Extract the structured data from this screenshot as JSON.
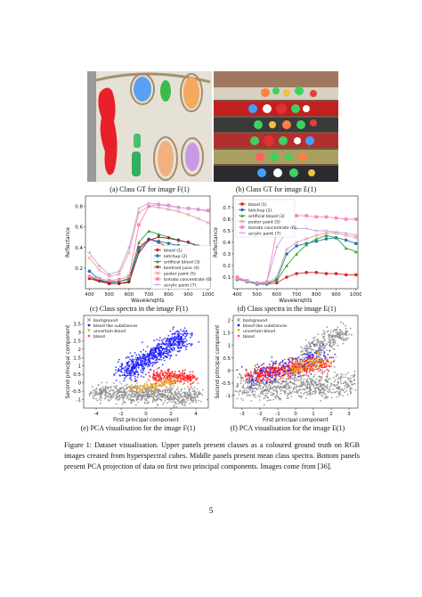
{
  "captions": {
    "a": "(a) Class GT for image F(1)",
    "b": "(b) Class GT for image E(1)",
    "c": "(c) Class spectra in the image F(1)",
    "d": "(d) Class spectra in the image E(1)",
    "e": "(e) PCA visualisation for the image F(1)",
    "f": "(f) PCA visualisation for the image E(1)"
  },
  "figure_caption": "Figure 1: Dataset visualisation. Upper panels present classes as a coloured ground truth on RGB images created from hyperspectral cubes. Middle panels present mean class spectra. Bottom panels present PCA projection of data on first two principal components. Images come from [36].",
  "page_number": "5",
  "colors": {
    "blood": "#d62728",
    "ketchup": "#1f77b4",
    "artificial": "#2ca02c",
    "beetroot": "#8b1a2b",
    "poster": "#e8a0a0",
    "tomato": "#ff7fbf",
    "acrylic": "#c9a0dc",
    "bg_gray": "#8a8a8a",
    "blue_pca": "#1a1aff",
    "orange_pca": "#e8a020",
    "red_pca": "#ff1a1a"
  },
  "chart_data": [
    {
      "id": "c",
      "type": "line",
      "xlabel": "Wavelenghts",
      "ylabel": "Reflectance",
      "xlim": [
        380,
        1010
      ],
      "ylim": [
        0.0,
        0.9
      ],
      "xticks": [
        400,
        500,
        600,
        700,
        800,
        900,
        1000
      ],
      "yticks": [
        0.2,
        0.4,
        0.6,
        0.8
      ],
      "legend": "bottom-right",
      "x": [
        400,
        450,
        500,
        550,
        600,
        650,
        700,
        750,
        800,
        850,
        900,
        950,
        1000
      ],
      "series": [
        {
          "name": "blood (1)",
          "key": "blood",
          "marker": "o",
          "values": [
            0.1,
            0.08,
            0.05,
            0.05,
            0.07,
            0.4,
            0.48,
            0.45,
            0.4,
            0.38,
            0.36,
            0.33,
            0.32
          ]
        },
        {
          "name": "ketchup (2)",
          "key": "ketchup",
          "marker": "o",
          "values": [
            0.17,
            0.09,
            0.06,
            0.07,
            0.1,
            0.38,
            0.48,
            0.46,
            0.44,
            0.42,
            0.4,
            0.36,
            0.35
          ]
        },
        {
          "name": "artificial blood (3)",
          "key": "artificial",
          "marker": "^",
          "values": [
            0.12,
            0.08,
            0.07,
            0.07,
            0.09,
            0.45,
            0.56,
            0.53,
            0.5,
            0.47,
            0.45,
            0.42,
            0.4
          ]
        },
        {
          "name": "beetroot juice (4)",
          "key": "beetroot",
          "marker": "v",
          "values": [
            0.1,
            0.07,
            0.05,
            0.05,
            0.06,
            0.35,
            0.47,
            0.5,
            0.49,
            0.47,
            0.45,
            0.41,
            0.38
          ]
        },
        {
          "name": "poster paint (5)",
          "key": "poster",
          "marker": "x",
          "values": [
            0.3,
            0.18,
            0.12,
            0.14,
            0.35,
            0.74,
            0.8,
            0.79,
            0.77,
            0.75,
            0.72,
            0.68,
            0.64
          ]
        },
        {
          "name": "tomato concentrate (6)",
          "key": "tomato",
          "marker": "s",
          "values": [
            0.12,
            0.1,
            0.08,
            0.09,
            0.12,
            0.62,
            0.8,
            0.82,
            0.81,
            0.79,
            0.78,
            0.77,
            0.76
          ]
        },
        {
          "name": "acrylic paint (7)",
          "key": "acrylic",
          "marker": "+",
          "values": [
            0.35,
            0.22,
            0.14,
            0.17,
            0.4,
            0.78,
            0.83,
            0.82,
            0.8,
            0.79,
            0.78,
            0.77,
            0.75
          ]
        }
      ]
    },
    {
      "id": "d",
      "type": "line",
      "xlabel": "Wavelenghts",
      "ylabel": "Reflectance",
      "xlim": [
        380,
        1010
      ],
      "ylim": [
        0.0,
        0.8
      ],
      "xticks": [
        400,
        500,
        600,
        700,
        800,
        900,
        1000
      ],
      "yticks": [
        0.1,
        0.2,
        0.3,
        0.4,
        0.5,
        0.6,
        0.7
      ],
      "legend": "top-left",
      "x": [
        400,
        450,
        500,
        550,
        600,
        650,
        700,
        750,
        800,
        850,
        900,
        950,
        1000
      ],
      "series": [
        {
          "name": "blood (1)",
          "key": "blood",
          "marker": "o",
          "values": [
            0.08,
            0.06,
            0.04,
            0.04,
            0.05,
            0.1,
            0.13,
            0.14,
            0.14,
            0.13,
            0.13,
            0.12,
            0.12
          ]
        },
        {
          "name": "ketchup (2)",
          "key": "ketchup",
          "marker": "o",
          "values": [
            0.09,
            0.06,
            0.04,
            0.04,
            0.08,
            0.3,
            0.37,
            0.39,
            0.41,
            0.43,
            0.44,
            0.42,
            0.39
          ]
        },
        {
          "name": "artificial blood (3)",
          "key": "artificial",
          "marker": "^",
          "values": [
            0.08,
            0.06,
            0.05,
            0.05,
            0.07,
            0.2,
            0.3,
            0.38,
            0.43,
            0.46,
            0.44,
            0.35,
            0.32
          ]
        },
        {
          "name": "poster paint (5)",
          "key": "poster",
          "marker": "x",
          "values": [
            0.09,
            0.07,
            0.05,
            0.05,
            0.1,
            0.34,
            0.4,
            0.43,
            0.46,
            0.48,
            0.48,
            0.46,
            0.44
          ]
        },
        {
          "name": "tomato concentrate (6)",
          "key": "tomato",
          "marker": "s",
          "values": [
            0.1,
            0.07,
            0.05,
            0.06,
            0.5,
            0.6,
            0.63,
            0.63,
            0.62,
            0.62,
            0.61,
            0.6,
            0.6
          ]
        },
        {
          "name": "acrylic paint (7)",
          "key": "acrylic",
          "marker": "+",
          "values": [
            0.08,
            0.06,
            0.05,
            0.06,
            0.36,
            0.5,
            0.52,
            0.52,
            0.5,
            0.5,
            0.49,
            0.48,
            0.46
          ]
        }
      ]
    },
    {
      "id": "e",
      "type": "scatter",
      "xlabel": "First principal component",
      "ylabel": "Second principal component",
      "xlim": [
        -5,
        5
      ],
      "ylim": [
        -1.5,
        4
      ],
      "xticks": [
        -4,
        -2,
        0,
        2,
        4
      ],
      "yticks": [
        -1,
        -0.5,
        0,
        0.5,
        1,
        1.5,
        2,
        2.5,
        3,
        3.5
      ],
      "legend": "top-left",
      "series": [
        {
          "name": "background",
          "key": "bg_gray",
          "marker": "x"
        },
        {
          "name": "blood like substances",
          "key": "blue_pca",
          "marker": "."
        },
        {
          "name": "uncertain blood",
          "key": "orange_pca",
          "marker": "v"
        },
        {
          "name": "blood",
          "key": "red_pca",
          "marker": "*"
        }
      ]
    },
    {
      "id": "f",
      "type": "scatter",
      "xlabel": "First principal component",
      "ylabel": "Second principal component",
      "xlim": [
        -3.5,
        3.5
      ],
      "ylim": [
        -1.5,
        2.2
      ],
      "xticks": [
        -3,
        -2,
        -1,
        0,
        1,
        2,
        3
      ],
      "yticks": [
        -1.0,
        -0.5,
        0.0,
        0.5,
        1.0,
        1.5,
        2.0
      ],
      "legend": "top-left",
      "series": [
        {
          "name": "background",
          "key": "bg_gray",
          "marker": "x"
        },
        {
          "name": "blood like substances",
          "key": "blue_pca",
          "marker": "."
        },
        {
          "name": "uncertain blood",
          "key": "orange_pca",
          "marker": "v"
        },
        {
          "name": "blood",
          "key": "red_pca",
          "marker": "*"
        }
      ]
    }
  ]
}
